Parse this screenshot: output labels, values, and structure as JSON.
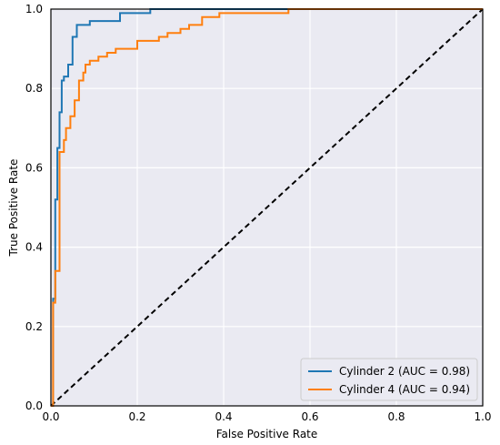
{
  "chart_data": {
    "type": "line",
    "title": "",
    "xlabel": "False Positive Rate",
    "ylabel": "True Positive Rate",
    "xlim": [
      0,
      1
    ],
    "ylim": [
      0,
      1
    ],
    "xticks": [
      "0.0",
      "0.2",
      "0.4",
      "0.6",
      "0.8",
      "1.0"
    ],
    "yticks": [
      "0.0",
      "0.2",
      "0.4",
      "0.6",
      "0.8",
      "1.0"
    ],
    "grid": true,
    "legend_position": "bottom-right",
    "series": [
      {
        "name": "Cylinder 2 (AUC = 0.98)",
        "color": "#1f77b4",
        "x": [
          0,
          0.005,
          0.005,
          0.01,
          0.01,
          0.015,
          0.015,
          0.02,
          0.02,
          0.025,
          0.025,
          0.03,
          0.03,
          0.04,
          0.04,
          0.05,
          0.05,
          0.06,
          0.06,
          0.09,
          0.09,
          0.16,
          0.16,
          0.23,
          0.23,
          0.55,
          0.55,
          1.0
        ],
        "y": [
          0,
          0,
          0.27,
          0.27,
          0.52,
          0.52,
          0.65,
          0.65,
          0.74,
          0.74,
          0.82,
          0.82,
          0.83,
          0.83,
          0.86,
          0.86,
          0.93,
          0.93,
          0.96,
          0.96,
          0.97,
          0.97,
          0.99,
          0.99,
          1.0,
          1.0,
          1.0,
          1.0
        ]
      },
      {
        "name": "Cylinder 4 (AUC = 0.94)",
        "color": "#ff7f0e",
        "x": [
          0,
          0.005,
          0.005,
          0.01,
          0.01,
          0.02,
          0.02,
          0.03,
          0.03,
          0.035,
          0.035,
          0.045,
          0.045,
          0.055,
          0.055,
          0.065,
          0.065,
          0.075,
          0.075,
          0.08,
          0.08,
          0.09,
          0.09,
          0.11,
          0.11,
          0.13,
          0.13,
          0.15,
          0.15,
          0.2,
          0.2,
          0.25,
          0.25,
          0.27,
          0.27,
          0.3,
          0.3,
          0.32,
          0.32,
          0.35,
          0.35,
          0.39,
          0.39,
          0.55,
          0.55,
          1.0
        ],
        "y": [
          0,
          0,
          0.26,
          0.26,
          0.34,
          0.34,
          0.64,
          0.64,
          0.67,
          0.67,
          0.7,
          0.7,
          0.73,
          0.73,
          0.77,
          0.77,
          0.82,
          0.82,
          0.84,
          0.84,
          0.86,
          0.86,
          0.87,
          0.87,
          0.88,
          0.88,
          0.89,
          0.89,
          0.9,
          0.9,
          0.92,
          0.92,
          0.93,
          0.93,
          0.94,
          0.94,
          0.95,
          0.95,
          0.96,
          0.96,
          0.98,
          0.98,
          0.99,
          0.99,
          1.0,
          1.0
        ]
      }
    ],
    "reference_line": {
      "x": [
        0,
        1
      ],
      "y": [
        0,
        1
      ],
      "color": "#000000",
      "style": "dashed"
    }
  }
}
